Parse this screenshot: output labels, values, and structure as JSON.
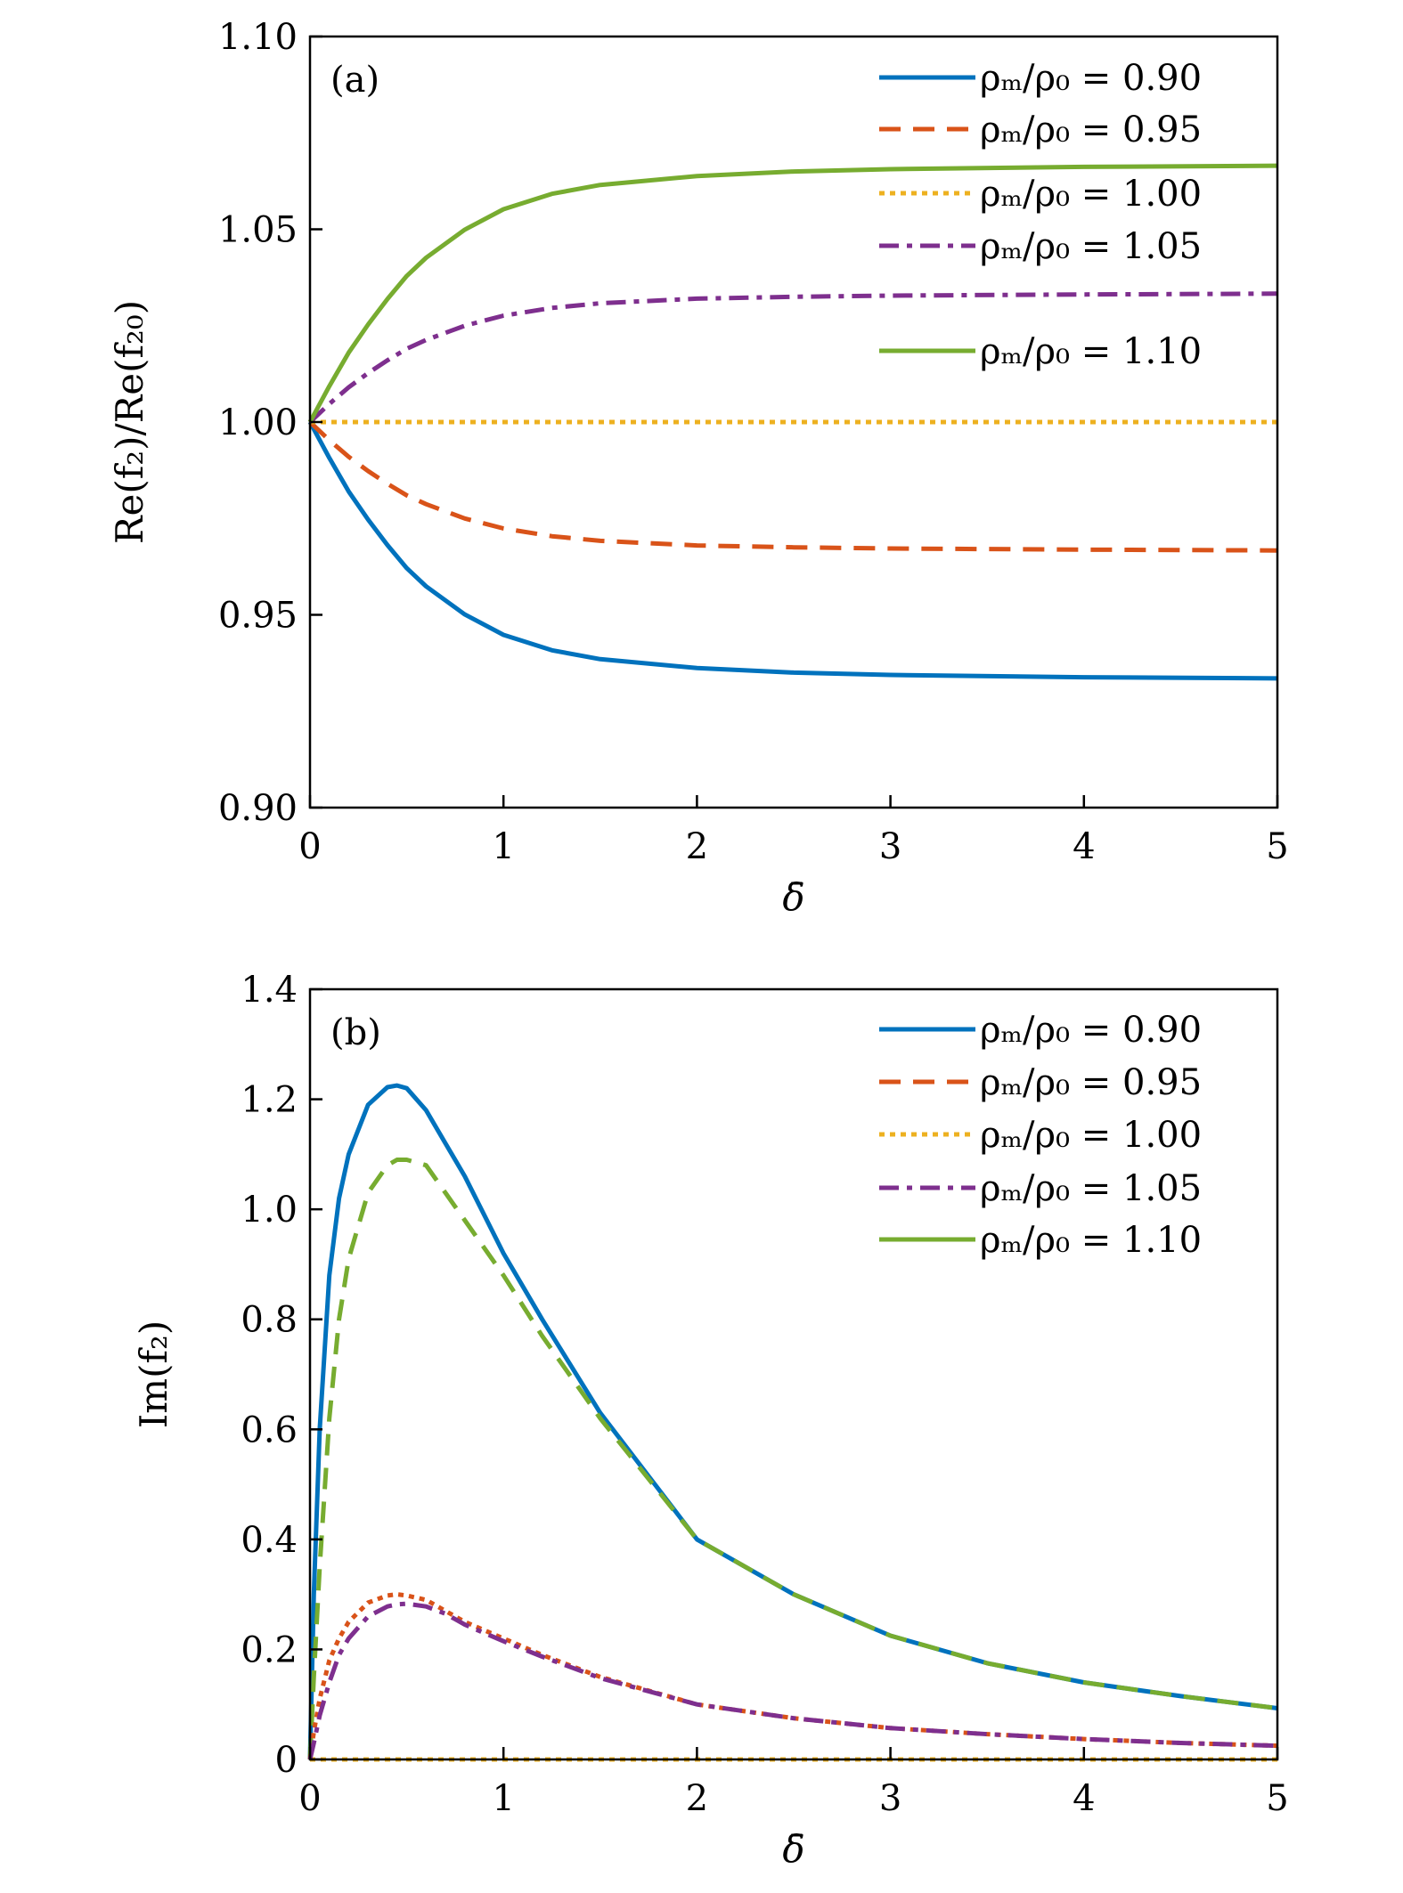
{
  "colors": {
    "c090": "#0072BD",
    "c095": "#D95319",
    "c100": "#EDB120",
    "c105": "#7E2F8E",
    "c110": "#77AC30"
  },
  "chart_data": [
    {
      "type": "line",
      "panel_label": "(a)",
      "xlabel": "δ̄",
      "ylabel": "Re(f₂)/Re(f₂₀)",
      "xlim": [
        0,
        5
      ],
      "ylim": [
        0.9,
        1.1
      ],
      "xticks": [
        0,
        1,
        2,
        3,
        4,
        5
      ],
      "xtick_labels": [
        "0",
        "1",
        "2",
        "3",
        "4",
        "5"
      ],
      "yticks": [
        0.9,
        0.95,
        1.0,
        1.05,
        1.1
      ],
      "ytick_labels": [
        "0.90",
        "0.95",
        "1.00",
        "1.05",
        "1.10"
      ],
      "grid": false,
      "legend_position": "top-right",
      "x": [
        0,
        0.1,
        0.2,
        0.3,
        0.4,
        0.5,
        0.6,
        0.8,
        1,
        1.25,
        1.5,
        2,
        2.5,
        3,
        4,
        5
      ],
      "series": [
        {
          "name": "ρₘ/ρ₀ = 0.90",
          "color": "#0072BD",
          "style": "solid",
          "values": [
            1,
            0.9907,
            0.982,
            0.9747,
            0.9681,
            0.9621,
            0.9574,
            0.9501,
            0.9448,
            0.9408,
            0.9385,
            0.9362,
            0.935,
            0.9344,
            0.9338,
            0.9335
          ]
        },
        {
          "name": "ρₘ/ρ₀ = 0.95",
          "color": "#D95319",
          "style": "dashed",
          "values": [
            1,
            0.9953,
            0.991,
            0.9873,
            0.984,
            0.981,
            0.9787,
            0.975,
            0.9724,
            0.9704,
            0.9692,
            0.968,
            0.9675,
            0.9672,
            0.9669,
            0.9667
          ]
        },
        {
          "name": "ρₘ/ρ₀ = 1.00",
          "color": "#EDB120",
          "style": "dotted",
          "values": [
            1,
            1,
            1,
            1,
            1,
            1,
            1,
            1,
            1,
            1,
            1,
            1,
            1,
            1,
            1,
            1
          ]
        },
        {
          "name": "ρₘ/ρ₀ = 1.05",
          "color": "#7E2F8E",
          "style": "dashdot",
          "values": [
            1,
            1.0047,
            1.009,
            1.0127,
            1.016,
            1.019,
            1.0213,
            1.025,
            1.0276,
            1.0296,
            1.0308,
            1.032,
            1.0325,
            1.0328,
            1.0331,
            1.0333
          ]
        },
        {
          "name": "ρₘ/ρ₀ = 1.10",
          "color": "#77AC30",
          "style": "solid",
          "values": [
            1,
            1.0093,
            1.018,
            1.0253,
            1.0319,
            1.0379,
            1.0426,
            1.0499,
            1.0552,
            1.0592,
            1.0615,
            1.0638,
            1.065,
            1.0656,
            1.0662,
            1.0665
          ]
        }
      ]
    },
    {
      "type": "line",
      "panel_label": "(b)",
      "xlabel": "δ̄",
      "ylabel": "Im(f₂)",
      "xlim": [
        0,
        5
      ],
      "ylim": [
        0,
        1.4
      ],
      "xticks": [
        0,
        1,
        2,
        3,
        4,
        5
      ],
      "xtick_labels": [
        "0",
        "1",
        "2",
        "3",
        "4",
        "5"
      ],
      "yticks": [
        0,
        0.2,
        0.4,
        0.6,
        0.8,
        1.0,
        1.2,
        1.4
      ],
      "ytick_labels": [
        "0",
        "0.2",
        "0.4",
        "0.6",
        "0.8",
        "1.0",
        "1.2",
        "1.4"
      ],
      "grid": false,
      "legend_position": "top-right",
      "legend": [
        {
          "name": "ρₘ/ρ₀ = 0.90",
          "color": "#0072BD",
          "style": "solid"
        },
        {
          "name": "ρₘ/ρ₀ = 0.95",
          "color": "#D95319",
          "style": "dashed"
        },
        {
          "name": "ρₘ/ρ₀ = 1.00",
          "color": "#EDB120",
          "style": "dotted"
        },
        {
          "name": "ρₘ/ρ₀ = 1.05",
          "color": "#7E2F8E",
          "style": "dashdot"
        },
        {
          "name": "ρₘ/ρ₀ = 1.10",
          "color": "#77AC30",
          "style": "solid"
        }
      ],
      "x": [
        0,
        0.02,
        0.05,
        0.1,
        0.15,
        0.2,
        0.3,
        0.4,
        0.45,
        0.5,
        0.6,
        0.7,
        0.8,
        1,
        1.2,
        1.5,
        2,
        2.5,
        3,
        3.5,
        4,
        4.5,
        5
      ],
      "series": [
        {
          "color": "#EDB120",
          "style": "dotted",
          "values": [
            0,
            0,
            0,
            0,
            0,
            0,
            0,
            0,
            0,
            0,
            0,
            0,
            0,
            0,
            0,
            0,
            0,
            0,
            0,
            0,
            0,
            0,
            0
          ]
        },
        {
          "color": "#0072BD",
          "style": "solid",
          "values": [
            0,
            0.3,
            0.6,
            0.88,
            1.02,
            1.1,
            1.19,
            1.222,
            1.225,
            1.22,
            1.18,
            1.12,
            1.06,
            0.92,
            0.8,
            0.63,
            0.4,
            0.3,
            0.225,
            0.175,
            0.14,
            0.115,
            0.093
          ]
        },
        {
          "color": "#77AC30",
          "style": "dashed",
          "values": [
            0,
            0.15,
            0.35,
            0.62,
            0.8,
            0.91,
            1.03,
            1.08,
            1.09,
            1.09,
            1.08,
            1.03,
            0.98,
            0.88,
            0.77,
            0.62,
            0.4,
            0.3,
            0.225,
            0.175,
            0.14,
            0.115,
            0.093
          ]
        },
        {
          "color": "#D95319",
          "style": "dotted",
          "values": [
            0,
            0.05,
            0.11,
            0.18,
            0.22,
            0.25,
            0.285,
            0.298,
            0.3,
            0.298,
            0.29,
            0.27,
            0.25,
            0.22,
            0.19,
            0.15,
            0.1,
            0.075,
            0.057,
            0.046,
            0.037,
            0.03,
            0.025
          ]
        },
        {
          "color": "#7E2F8E",
          "style": "dashdot",
          "values": [
            0,
            0.03,
            0.08,
            0.14,
            0.19,
            0.22,
            0.26,
            0.278,
            0.282,
            0.283,
            0.278,
            0.265,
            0.245,
            0.215,
            0.187,
            0.148,
            0.1,
            0.075,
            0.057,
            0.046,
            0.037,
            0.03,
            0.025
          ]
        }
      ]
    }
  ]
}
